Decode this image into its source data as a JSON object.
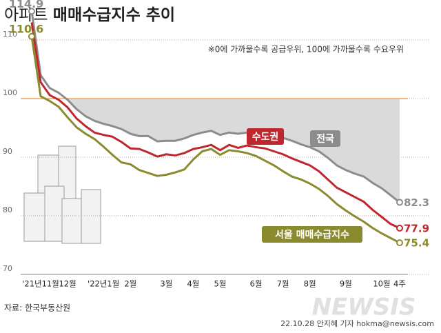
{
  "chart_data": {
    "type": "line",
    "title_parts": [
      "아파트",
      "매매수급지수 추이"
    ],
    "note": "※0에 가까울수록 공급우위, 100에 가까울수록 수요우위",
    "source": "자료: 한국부동산원",
    "credit": "22.10.28 안지혜 기자 hokma@newsis.com",
    "watermark": "NEWSIS",
    "categories": [
      null,
      "'21년11월",
      null,
      null,
      "12월",
      null,
      null,
      null,
      "'22년1월",
      null,
      null,
      "2월",
      null,
      null,
      null,
      "3월",
      null,
      null,
      "4월",
      null,
      null,
      "5월",
      null,
      null,
      null,
      "6월",
      null,
      null,
      "7월",
      null,
      null,
      "8월",
      null,
      null,
      null,
      "9월",
      null,
      null,
      null,
      "10월",
      null,
      "4주"
    ],
    "series": [
      {
        "name": "전국",
        "color": "#8c8c8c",
        "values": [
          114.9,
          104.0,
          101.8,
          101.0,
          99.8,
          98.2,
          97.0,
          96.2,
          95.7,
          95.3,
          94.8,
          94.0,
          93.6,
          93.6,
          92.7,
          92.8,
          92.8,
          93.2,
          93.8,
          94.2,
          94.5,
          93.8,
          94.2,
          94.0,
          94.2,
          94.2,
          94.0,
          93.7,
          93.3,
          92.8,
          92.2,
          91.7,
          91.0,
          89.9,
          88.6,
          87.8,
          87.2,
          86.7,
          85.6,
          84.7,
          83.5,
          82.3
        ]
      },
      {
        "name": "수도권",
        "color": "#c0272d",
        "values": [
          113.0,
          102.8,
          100.6,
          99.8,
          98.5,
          96.6,
          95.3,
          94.2,
          93.8,
          93.5,
          92.6,
          91.5,
          91.4,
          90.8,
          90.1,
          90.5,
          90.3,
          90.7,
          91.4,
          91.7,
          92.1,
          91.2,
          92.1,
          91.6,
          92.0,
          91.7,
          91.5,
          91.0,
          90.5,
          89.8,
          89.2,
          88.6,
          87.6,
          86.2,
          84.8,
          84.0,
          83.2,
          82.4,
          81.0,
          79.8,
          78.6,
          77.9
        ]
      },
      {
        "name": "서울 매매수급지수",
        "color": "#8a8a2e",
        "values": [
          110.6,
          100.4,
          99.6,
          98.6,
          96.8,
          95.1,
          94.0,
          93.1,
          91.8,
          90.4,
          89.1,
          88.8,
          87.8,
          87.3,
          86.8,
          87.0,
          87.4,
          87.9,
          89.6,
          91.0,
          91.4,
          90.4,
          91.2,
          91.0,
          90.7,
          90.2,
          89.4,
          88.6,
          87.6,
          86.7,
          86.2,
          85.5,
          84.6,
          83.4,
          82.0,
          80.9,
          79.9,
          79.0,
          77.9,
          77.0,
          76.2,
          75.4
        ]
      }
    ],
    "ylim": [
      70,
      110
    ],
    "yticks": [
      70,
      80,
      90,
      100,
      110
    ],
    "grid": true,
    "reference_line": 100,
    "reference_color": "#f0a050",
    "area_color": "#dadada"
  }
}
